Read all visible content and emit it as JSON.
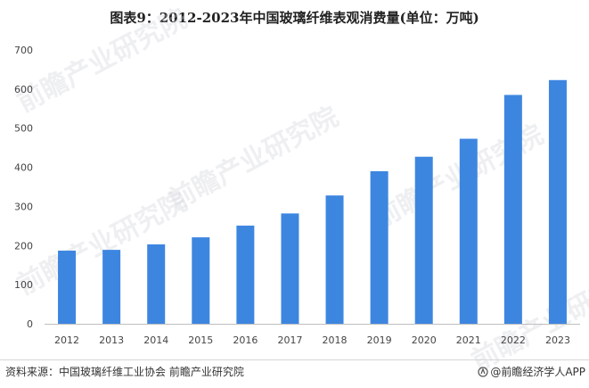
{
  "chart_data": {
    "type": "bar",
    "title": "图表9：2012-2023年中国玻璃纤维表观消费量(单位：万吨)",
    "categories": [
      "2012",
      "2013",
      "2014",
      "2015",
      "2016",
      "2017",
      "2018",
      "2019",
      "2020",
      "2021",
      "2022",
      "2023"
    ],
    "series": [
      {
        "values": [
          187,
          189,
          203,
          221,
          251,
          282,
          328,
          390,
          427,
          473,
          585,
          623
        ]
      }
    ],
    "ylim": [
      0,
      700
    ],
    "yticks": [
      0,
      100,
      200,
      300,
      400,
      500,
      600,
      700
    ],
    "grid": false,
    "bar_color": "#3d86e0",
    "axis_color": "#bfbfbf"
  },
  "footer": {
    "source": "资料来源：中国玻璃纤维工业协会 前瞻产业研究院",
    "credit": "@前瞻经济学人APP"
  },
  "watermark": {
    "text": "前瞻产业研究院"
  }
}
